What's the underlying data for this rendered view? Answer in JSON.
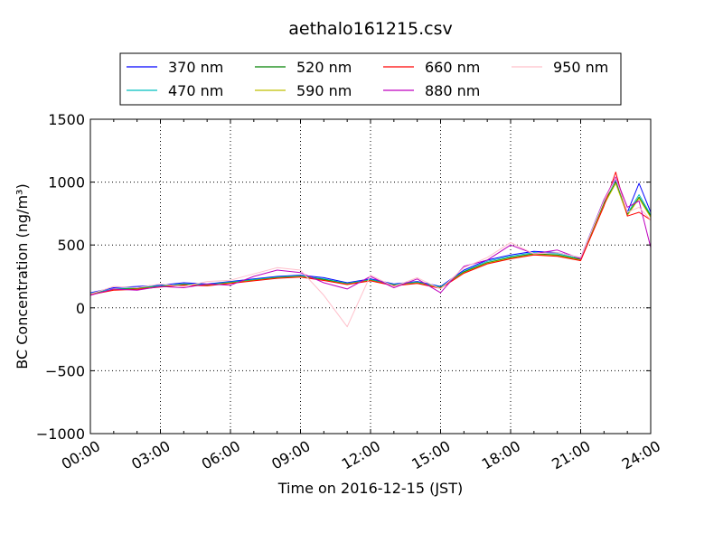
{
  "chart_data": {
    "type": "line",
    "title": "aethalo161215.csv",
    "xlabel": "Time on 2016-12-15 (JST)",
    "ylabel": "BC Concentration (ng/m³)",
    "x_range": [
      "2016-12-15 00:00",
      "2016-12-16 00:00"
    ],
    "ylim": [
      -1000,
      1500
    ],
    "x_ticks": [
      "00:00",
      "03:00",
      "06:00",
      "09:00",
      "12:00",
      "15:00",
      "18:00",
      "21:00",
      "24:00"
    ],
    "y_ticks": [
      "−1000",
      "−500",
      "0",
      "500",
      "1000",
      "1500"
    ],
    "grid": true,
    "legend_position": "top-center",
    "x_times": [
      "00:00",
      "01:00",
      "02:00",
      "03:00",
      "04:00",
      "05:00",
      "06:00",
      "07:00",
      "08:00",
      "09:00",
      "10:00",
      "11:00",
      "12:00",
      "13:00",
      "14:00",
      "15:00",
      "16:00",
      "17:00",
      "18:00",
      "19:00",
      "20:00",
      "21:00",
      "22:00",
      "22:30",
      "23:00",
      "23:30",
      "24:00"
    ],
    "series": [
      {
        "name": "370 nm",
        "color": "#0000ff",
        "values": [
          120,
          160,
          170,
          180,
          200,
          190,
          210,
          230,
          250,
          260,
          240,
          200,
          230,
          190,
          210,
          170,
          300,
          380,
          420,
          450,
          440,
          400,
          860,
          1020,
          760,
          990,
          760
        ]
      },
      {
        "name": "470 nm",
        "color": "#00bfbf",
        "values": [
          115,
          150,
          160,
          175,
          190,
          185,
          205,
          225,
          245,
          255,
          230,
          195,
          225,
          185,
          205,
          165,
          290,
          370,
          410,
          440,
          430,
          390,
          840,
          1000,
          750,
          900,
          740
        ]
      },
      {
        "name": "520 nm",
        "color": "#008000",
        "values": [
          110,
          145,
          155,
          170,
          185,
          180,
          200,
          220,
          240,
          250,
          225,
          190,
          220,
          180,
          200,
          160,
          285,
          360,
          400,
          430,
          420,
          385,
          830,
          1000,
          740,
          880,
          730
        ]
      },
      {
        "name": "590 nm",
        "color": "#bfbf00",
        "values": [
          108,
          142,
          150,
          168,
          182,
          178,
          198,
          218,
          238,
          248,
          220,
          188,
          218,
          178,
          198,
          158,
          280,
          355,
          395,
          425,
          415,
          380,
          820,
          990,
          735,
          870,
          720
        ]
      },
      {
        "name": "660 nm",
        "color": "#ff0000",
        "values": [
          105,
          140,
          148,
          165,
          180,
          175,
          195,
          215,
          235,
          245,
          218,
          185,
          215,
          175,
          195,
          155,
          275,
          350,
          390,
          420,
          410,
          375,
          810,
          1080,
          730,
          760,
          700
        ]
      },
      {
        "name": "880 nm",
        "color": "#bf00bf",
        "values": [
          100,
          150,
          140,
          170,
          160,
          190,
          180,
          250,
          300,
          280,
          200,
          150,
          250,
          160,
          230,
          120,
          330,
          380,
          500,
          430,
          460,
          390,
          860,
          1040,
          800,
          850,
          480
        ]
      },
      {
        "name": "950 nm",
        "color": "#ffc0cb",
        "values": [
          110,
          170,
          160,
          190,
          170,
          210,
          220,
          270,
          320,
          300,
          100,
          -150,
          260,
          170,
          240,
          150,
          320,
          400,
          520,
          430,
          440,
          400,
          850,
          1030,
          760,
          800,
          700
        ]
      }
    ]
  }
}
